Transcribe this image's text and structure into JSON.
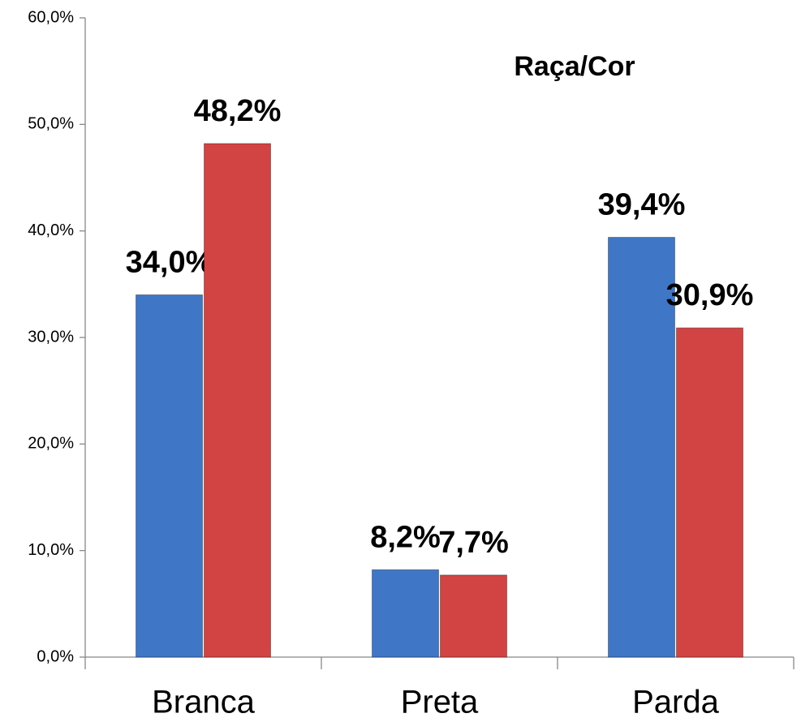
{
  "chart_data": {
    "type": "bar",
    "title": "Raça/Cor",
    "categories": [
      "Branca",
      "Preta",
      "Parda"
    ],
    "series": [
      {
        "color": "#3f76c6",
        "values": [
          34.0,
          8.2,
          39.4
        ],
        "value_labels": [
          "34,0%",
          "8,2%",
          "39,4%"
        ]
      },
      {
        "color": "#d24343",
        "values": [
          48.2,
          7.7,
          30.9
        ],
        "value_labels": [
          "48,2%",
          "7,7%",
          "30,9%"
        ]
      }
    ],
    "ylim": [
      0,
      60
    ],
    "yticks": [
      {
        "value": 0,
        "label": "0,0%"
      },
      {
        "value": 10,
        "label": "10,0%"
      },
      {
        "value": 20,
        "label": "20,0%"
      },
      {
        "value": 30,
        "label": "30,0%"
      },
      {
        "value": 40,
        "label": "40,0%"
      },
      {
        "value": 50,
        "label": "50,0%"
      },
      {
        "value": 60,
        "label": "60,0%"
      }
    ],
    "grid": false
  }
}
